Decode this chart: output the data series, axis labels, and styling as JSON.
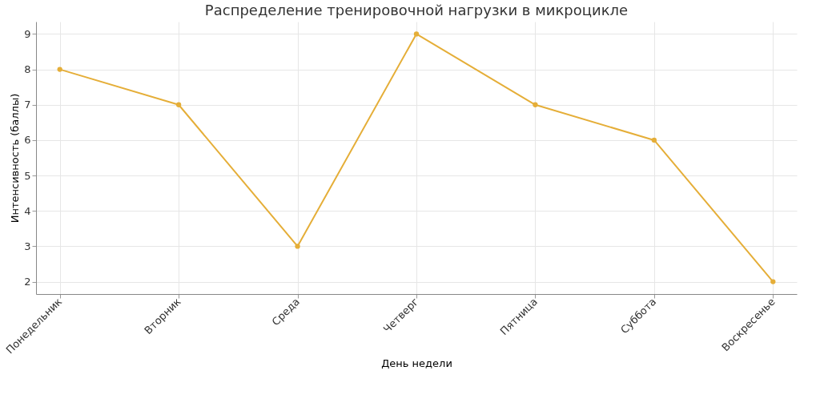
{
  "chart_data": {
    "type": "line",
    "title": "Распределение тренировочной нагрузки в микроцикле",
    "xlabel": "День недели",
    "ylabel": "Интенсивность (баллы)",
    "categories": [
      "Понедельник",
      "Вторник",
      "Среда",
      "Четверг",
      "Пятница",
      "Суббота",
      "Воскресенье"
    ],
    "series": [
      {
        "color": "#e5ae38",
        "values": [
          8,
          7,
          3,
          9,
          7,
          6,
          2
        ]
      }
    ],
    "ylim": [
      1.65,
      9.35
    ],
    "yticks": [
      2,
      3,
      4,
      5,
      6,
      7,
      8,
      9
    ],
    "grid": true,
    "marker": "circle",
    "line_style": "solid"
  }
}
